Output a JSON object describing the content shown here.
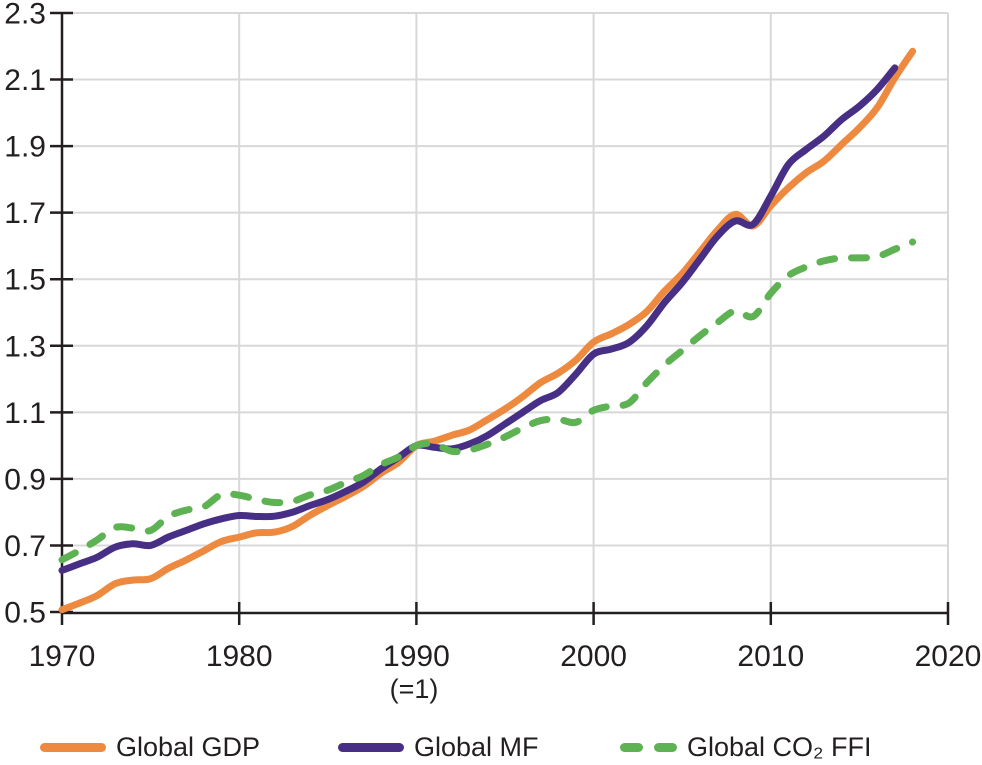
{
  "figure": {
    "background": "#ffffff",
    "axis_color": "#231F20",
    "grid_color": "#D8D8D8",
    "tick_label_color": "#231F20"
  },
  "chart_data": {
    "type": "line",
    "title": "",
    "xlabel": "",
    "ylabel": "",
    "xlim": [
      1970,
      2020
    ],
    "ylim": [
      0.5,
      2.3
    ],
    "x_ticks": [
      1970,
      1980,
      1990,
      2000,
      2010,
      2020
    ],
    "y_ticks": [
      0.5,
      0.7,
      0.9,
      1.1,
      1.3,
      1.5,
      1.7,
      1.9,
      2.1,
      2.3
    ],
    "grid": true,
    "legend_position": "bottom",
    "index_note": {
      "text": "(=1)",
      "under_x": 1990
    },
    "series": [
      {
        "name": "Global GDP",
        "color": "#ED8A3F",
        "line_style": "solid",
        "years": [
          1970,
          1971,
          1972,
          1973,
          1974,
          1975,
          1976,
          1977,
          1978,
          1979,
          1980,
          1981,
          1982,
          1983,
          1984,
          1985,
          1986,
          1987,
          1988,
          1989,
          1990,
          1991,
          1992,
          1993,
          1994,
          1995,
          1996,
          1997,
          1998,
          1999,
          2000,
          2001,
          2002,
          2003,
          2004,
          2005,
          2006,
          2007,
          2008,
          2009,
          2010,
          2011,
          2012,
          2013,
          2014,
          2015,
          2016,
          2017,
          2018
        ],
        "values": [
          0.507,
          0.527,
          0.55,
          0.585,
          0.596,
          0.6,
          0.631,
          0.656,
          0.684,
          0.712,
          0.725,
          0.738,
          0.74,
          0.757,
          0.791,
          0.82,
          0.847,
          0.877,
          0.917,
          0.95,
          1.0,
          1.013,
          1.031,
          1.047,
          1.078,
          1.11,
          1.147,
          1.189,
          1.218,
          1.257,
          1.311,
          1.336,
          1.364,
          1.403,
          1.464,
          1.517,
          1.582,
          1.648,
          1.695,
          1.66,
          1.721,
          1.775,
          1.82,
          1.855,
          1.905,
          1.955,
          2.015,
          2.105,
          2.185
        ]
      },
      {
        "name": "Global MF",
        "color": "#472F85",
        "line_style": "solid",
        "years": [
          1970,
          1971,
          1972,
          1973,
          1974,
          1975,
          1976,
          1977,
          1978,
          1979,
          1980,
          1981,
          1982,
          1983,
          1984,
          1985,
          1986,
          1987,
          1988,
          1989,
          1990,
          1991,
          1992,
          1993,
          1994,
          1995,
          1996,
          1997,
          1998,
          1999,
          2000,
          2001,
          2002,
          2003,
          2004,
          2005,
          2006,
          2007,
          2008,
          2009,
          2010,
          2011,
          2012,
          2013,
          2014,
          2015,
          2016,
          2017
        ],
        "values": [
          0.625,
          0.645,
          0.665,
          0.695,
          0.705,
          0.7,
          0.725,
          0.745,
          0.765,
          0.78,
          0.79,
          0.787,
          0.788,
          0.8,
          0.82,
          0.838,
          0.862,
          0.89,
          0.93,
          0.965,
          1.0,
          0.995,
          0.99,
          1.005,
          1.03,
          1.065,
          1.1,
          1.135,
          1.16,
          1.215,
          1.275,
          1.29,
          1.31,
          1.36,
          1.43,
          1.49,
          1.56,
          1.63,
          1.675,
          1.665,
          1.75,
          1.845,
          1.89,
          1.93,
          1.98,
          2.02,
          2.07,
          2.135
        ]
      },
      {
        "name": "Global CO₂ FFI",
        "color": "#5EB253",
        "line_style": "dashed",
        "years": [
          1970,
          1971,
          1972,
          1973,
          1974,
          1975,
          1976,
          1977,
          1978,
          1979,
          1980,
          1981,
          1982,
          1983,
          1984,
          1985,
          1986,
          1987,
          1988,
          1989,
          1990,
          1991,
          1992,
          1993,
          1994,
          1995,
          1996,
          1997,
          1998,
          1999,
          2000,
          2001,
          2002,
          2003,
          2004,
          2005,
          2006,
          2007,
          2008,
          2009,
          2010,
          2011,
          2012,
          2013,
          2014,
          2015,
          2016,
          2017,
          2018
        ],
        "values": [
          0.657,
          0.685,
          0.717,
          0.754,
          0.752,
          0.745,
          0.787,
          0.806,
          0.816,
          0.853,
          0.851,
          0.838,
          0.829,
          0.832,
          0.852,
          0.866,
          0.889,
          0.91,
          0.943,
          0.966,
          1.0,
          1.005,
          0.983,
          0.987,
          1.004,
          1.026,
          1.053,
          1.075,
          1.079,
          1.07,
          1.106,
          1.119,
          1.128,
          1.189,
          1.242,
          1.286,
          1.33,
          1.37,
          1.405,
          1.388,
          1.458,
          1.511,
          1.537,
          1.555,
          1.564,
          1.564,
          1.568,
          1.59,
          1.612
        ]
      }
    ]
  }
}
